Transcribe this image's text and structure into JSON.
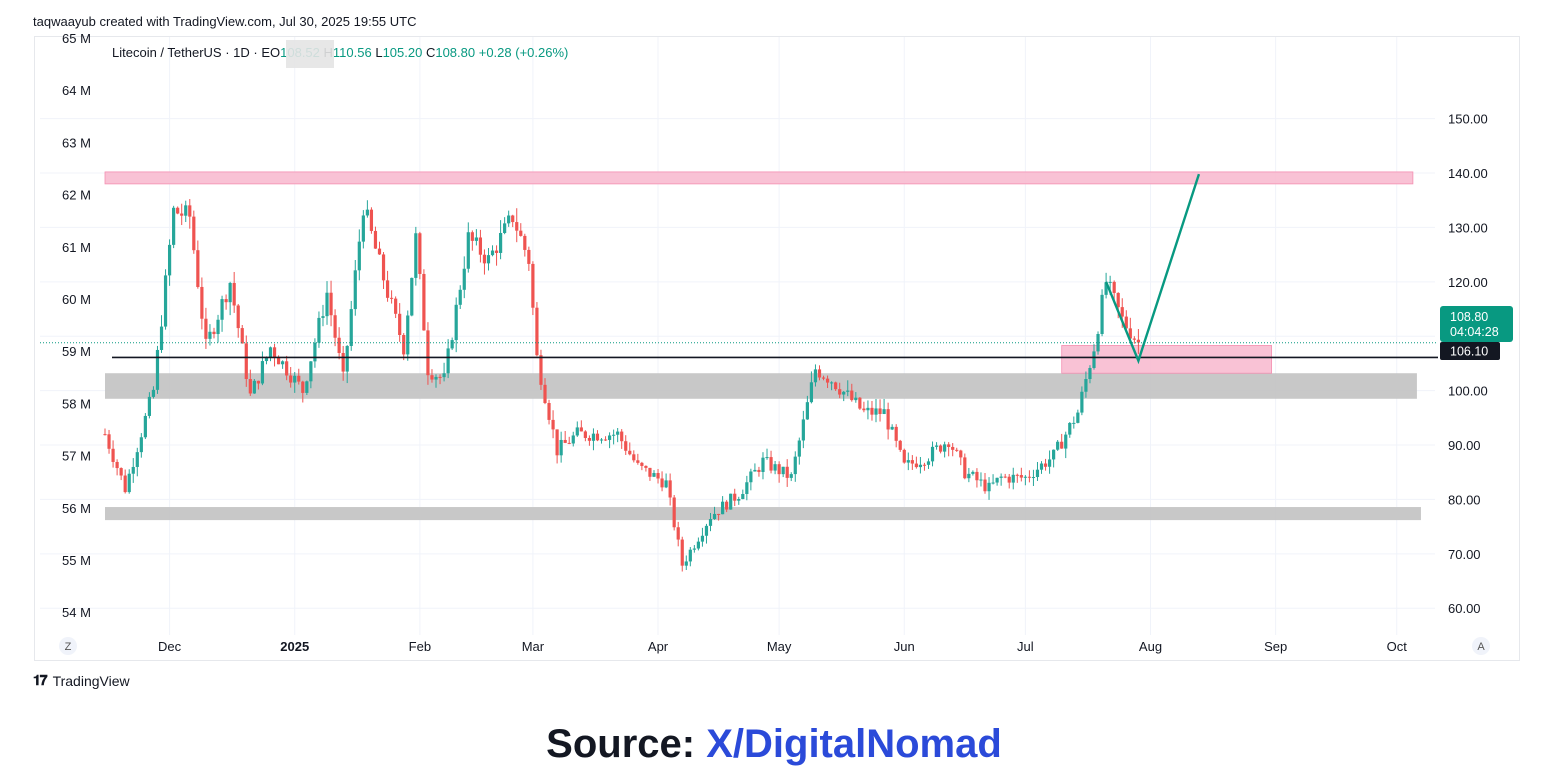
{
  "header": {
    "attribution": "taqwaayub created with TradingView.com, Jul 30, 2025 19:55 UTC"
  },
  "legend": {
    "symbol": "Litecoin / TetherUS · 1D · E",
    "open_label": "O",
    "open": "108.52",
    "high_label": "H",
    "high": "110.56",
    "low_label": "L",
    "low": "105.20",
    "close_label": "C",
    "close": "108.80",
    "change": "+0.28 (+0.26%)"
  },
  "colors": {
    "up": "#26a69a",
    "down": "#ef5350",
    "accent": "#089981",
    "pink_zone": "#f8bbd0",
    "gray_zone": "#c2c2c2",
    "level_line": "#131722"
  },
  "footer": {
    "brand": "TradingView"
  },
  "source": {
    "label": "Source: ",
    "link": "X/DigitalNomad"
  },
  "chart_data": {
    "type": "candlestick",
    "title": "Litecoin / TetherUS · 1D",
    "x_type": "date",
    "x_range": [
      "2024-11-15",
      "2025-10-08"
    ],
    "x_ticks": [
      {
        "label": "Dec",
        "date": "2024-12-01"
      },
      {
        "label": "2025",
        "date": "2025-01-01"
      },
      {
        "label": "Feb",
        "date": "2025-02-01"
      },
      {
        "label": "Mar",
        "date": "2025-03-01"
      },
      {
        "label": "Apr",
        "date": "2025-04-01"
      },
      {
        "label": "May",
        "date": "2025-05-01"
      },
      {
        "label": "Jun",
        "date": "2025-06-01"
      },
      {
        "label": "Jul",
        "date": "2025-07-01"
      },
      {
        "label": "Aug",
        "date": "2025-08-01"
      },
      {
        "label": "Sep",
        "date": "2025-09-01"
      },
      {
        "label": "Oct",
        "date": "2025-10-01"
      }
    ],
    "y_right": {
      "range": [
        56,
        165
      ],
      "ticks": [
        "150.00",
        "140.00",
        "130.00",
        "120.00",
        "110.00",
        "100.00",
        "90.00",
        "80.00",
        "70.00",
        "60.00"
      ]
    },
    "y_left": {
      "ticks": [
        "65 M",
        "64 M",
        "63 M",
        "62 M",
        "61 M",
        "60 M",
        "59 M",
        "58 M",
        "57 M",
        "56 M",
        "55 M",
        "54 M"
      ]
    },
    "price_labels": {
      "last": "108.80",
      "countdown": "04:04:28",
      "level": "106.10"
    },
    "corner_labels": {
      "left": "Z",
      "right": "A"
    },
    "zones": [
      {
        "name": "resistance",
        "color": "pink",
        "start": "2024-11-15",
        "end": "2025-10-05",
        "low": 138,
        "high": 140.2
      },
      {
        "name": "support-mid",
        "color": "gray",
        "start": "2024-11-15",
        "end": "2025-10-06",
        "low": 98.5,
        "high": 103.2
      },
      {
        "name": "support-low",
        "color": "gray",
        "start": "2024-11-15",
        "end": "2025-10-07",
        "low": 76.2,
        "high": 78.6
      },
      {
        "name": "retest-box",
        "color": "pink",
        "start": "2025-07-10",
        "end": "2025-08-31",
        "low": 103.2,
        "high": 108.3
      }
    ],
    "level_line": 106.1,
    "last_price_line": 108.8,
    "projection": [
      {
        "date": "2025-07-21",
        "price": 120
      },
      {
        "date": "2025-07-29",
        "price": 105.5
      },
      {
        "date": "2025-08-13",
        "price": 139.8
      }
    ],
    "anchors": [
      [
        "2024-11-15",
        92
      ],
      [
        "2024-11-20",
        82
      ],
      [
        "2024-11-27",
        100
      ],
      [
        "2024-12-02",
        133
      ],
      [
        "2024-12-06",
        132
      ],
      [
        "2024-12-10",
        108
      ],
      [
        "2024-12-16",
        120
      ],
      [
        "2024-12-21",
        99
      ],
      [
        "2024-12-26",
        108
      ],
      [
        "2025-01-03",
        100
      ],
      [
        "2025-01-09",
        118
      ],
      [
        "2025-01-13",
        102
      ],
      [
        "2025-01-18",
        134
      ],
      [
        "2025-01-24",
        118
      ],
      [
        "2025-01-28",
        108
      ],
      [
        "2025-01-31",
        128
      ],
      [
        "2025-02-03",
        104
      ],
      [
        "2025-02-07",
        102
      ],
      [
        "2025-02-13",
        128
      ],
      [
        "2025-02-18",
        124
      ],
      [
        "2025-02-24",
        132
      ],
      [
        "2025-02-28",
        124
      ],
      [
        "2025-03-02",
        106
      ],
      [
        "2025-03-07",
        89
      ],
      [
        "2025-03-12",
        92
      ],
      [
        "2025-03-22",
        92
      ],
      [
        "2025-03-27",
        86
      ],
      [
        "2025-04-03",
        83
      ],
      [
        "2025-04-07",
        68
      ],
      [
        "2025-04-14",
        77
      ],
      [
        "2025-04-21",
        81
      ],
      [
        "2025-04-27",
        87
      ],
      [
        "2025-05-04",
        84
      ],
      [
        "2025-05-10",
        104
      ],
      [
        "2025-05-14",
        102
      ],
      [
        "2025-05-22",
        96
      ],
      [
        "2025-05-27",
        96
      ],
      [
        "2025-06-01",
        86
      ],
      [
        "2025-06-07",
        88
      ],
      [
        "2025-06-12",
        91
      ],
      [
        "2025-06-16",
        85
      ],
      [
        "2025-06-22",
        82
      ],
      [
        "2025-06-25",
        84
      ],
      [
        "2025-07-01",
        84
      ],
      [
        "2025-07-08",
        88
      ],
      [
        "2025-07-14",
        96
      ],
      [
        "2025-07-18",
        108
      ],
      [
        "2025-07-21",
        120
      ],
      [
        "2025-07-25",
        113
      ],
      [
        "2025-07-29",
        108.8
      ]
    ]
  }
}
